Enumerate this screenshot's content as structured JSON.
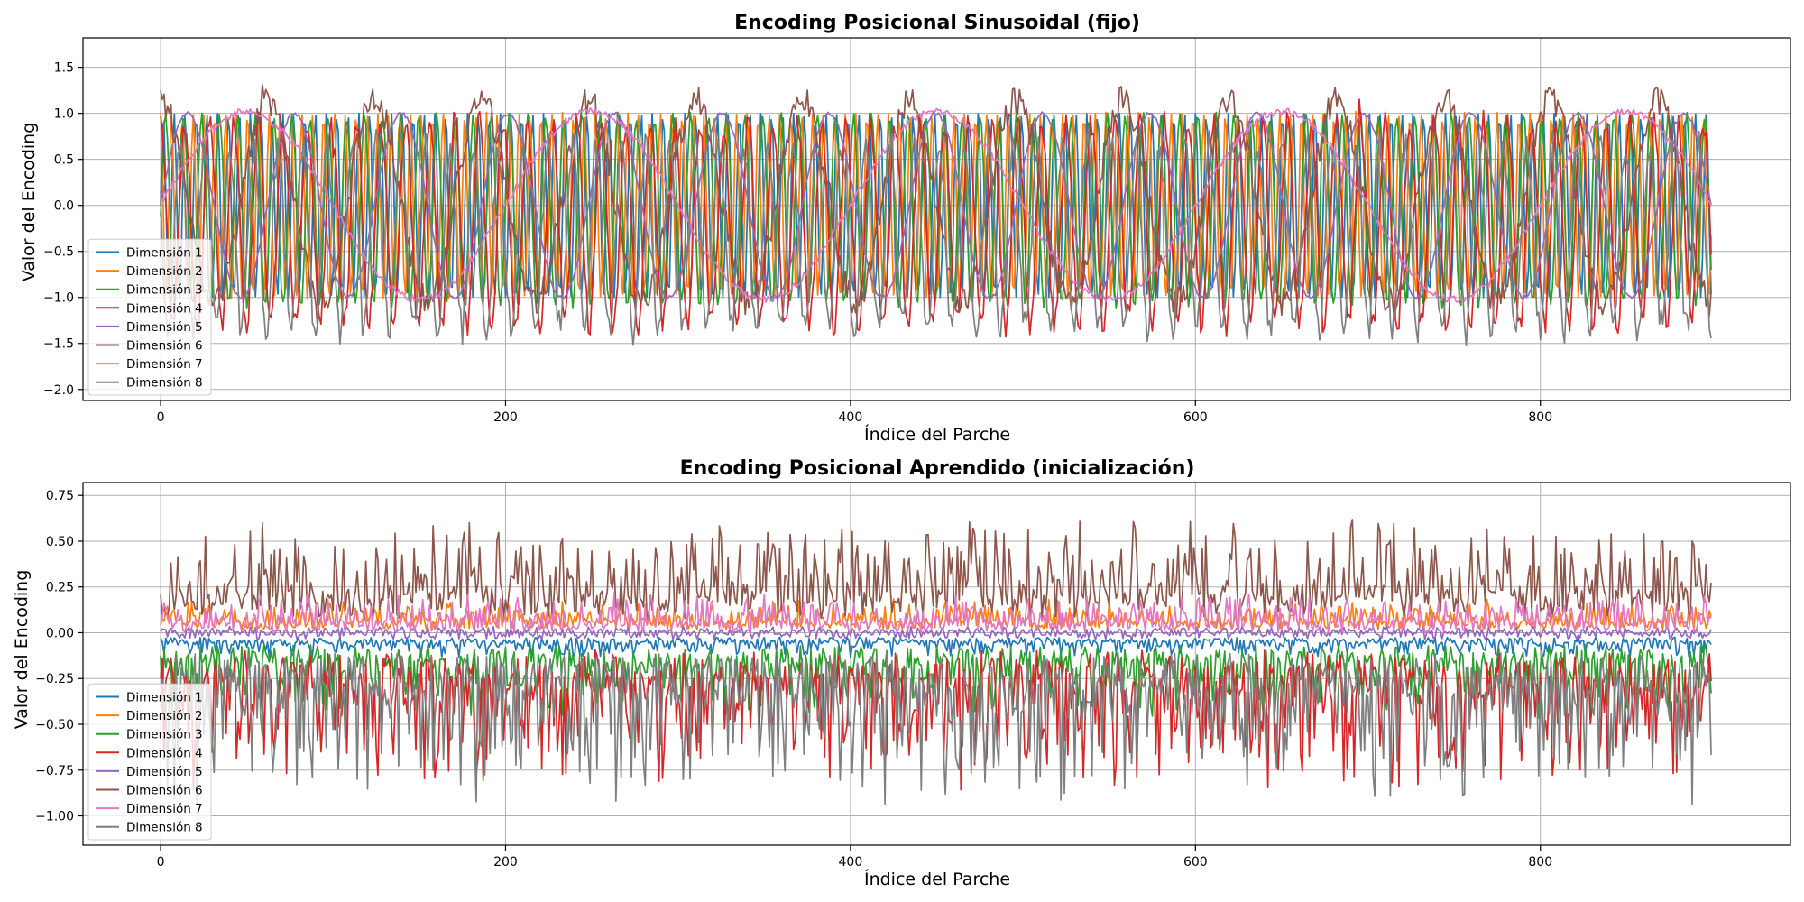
{
  "chart_data": [
    {
      "type": "line",
      "title": "Encoding Posicional Sinusoidal (fijo)",
      "xlabel": "Índice del Parche",
      "ylabel": "Valor del Encoding",
      "xlim": [
        -45,
        945
      ],
      "ylim": [
        -2.12,
        1.82
      ],
      "xticks": [
        0,
        200,
        400,
        600,
        800
      ],
      "yticks": [
        -2.0,
        -1.5,
        -1.0,
        -0.5,
        0.0,
        0.5,
        1.0,
        1.5
      ],
      "ytick_labels": [
        "−2.0",
        "−1.5",
        "−1.0",
        "−0.5",
        "0.0",
        "0.5",
        "1.0",
        "1.5"
      ],
      "xtick_labels": [
        "0",
        "200",
        "400",
        "600",
        "800"
      ],
      "grid": true,
      "legend_position": "lower-left",
      "n_points": 900,
      "series": [
        {
          "name": "Dimensión 1",
          "color": "#1f77b4",
          "kind": "sin",
          "period": 6.3,
          "amplitude": 1.0,
          "phase": 0.0,
          "noise": 0.0,
          "offset": 0.0
        },
        {
          "name": "Dimensión 2",
          "color": "#ff7f0e",
          "kind": "cos",
          "period": 6.3,
          "amplitude": 1.0,
          "phase": 0.0,
          "noise": 0.02,
          "offset": 0.0
        },
        {
          "name": "Dimensión 3",
          "color": "#2ca02c",
          "kind": "sin",
          "period": 10.5,
          "amplitude": 1.02,
          "phase": -0.1,
          "noise": 0.06,
          "offset": -0.05
        },
        {
          "name": "Dimensión 4",
          "color": "#d62728",
          "kind": "cos",
          "period": 14.2,
          "amplitude": 1.1,
          "phase": 0.0,
          "noise": 0.14,
          "offset": -0.2
        },
        {
          "name": "Dimensión 5",
          "color": "#9467bd",
          "kind": "sin",
          "period": 62.0,
          "amplitude": 1.0,
          "phase": 0.0,
          "noise": 0.02,
          "offset": 0.0
        },
        {
          "name": "Dimensión 6",
          "color": "#8c564b",
          "kind": "cos",
          "period": 62.0,
          "amplitude": 1.1,
          "phase": 0.0,
          "noise": 0.16,
          "offset": 0.05
        },
        {
          "name": "Dimensión 7",
          "color": "#e377c2",
          "kind": "sin",
          "period": 200.0,
          "amplitude": 1.02,
          "phase": 0.0,
          "noise": 0.04,
          "offset": 0.0
        },
        {
          "name": "Dimensión 8",
          "color": "#7f7f7f",
          "kind": "cos",
          "period": 14.2,
          "amplitude": 1.0,
          "phase": 1.2,
          "noise": 0.18,
          "offset": -0.35
        }
      ]
    },
    {
      "type": "line",
      "title": "Encoding Posicional Aprendido (inicialización)",
      "xlabel": "Índice del Parche",
      "ylabel": "Valor del Encoding",
      "xlim": [
        -45,
        945
      ],
      "ylim": [
        -1.16,
        0.82
      ],
      "xticks": [
        0,
        200,
        400,
        600,
        800
      ],
      "yticks": [
        -1.0,
        -0.75,
        -0.5,
        -0.25,
        0.0,
        0.25,
        0.5,
        0.75
      ],
      "ytick_labels": [
        "−1.00",
        "−0.75",
        "−0.50",
        "−0.25",
        "0.00",
        "0.25",
        "0.50",
        "0.75"
      ],
      "xtick_labels": [
        "0",
        "200",
        "400",
        "600",
        "800"
      ],
      "grid": true,
      "legend_position": "lower-left",
      "n_points": 900,
      "series": [
        {
          "name": "Dimensión 1",
          "color": "#1f77b4",
          "base": -0.04,
          "spread": 0.06,
          "sign": -1
        },
        {
          "name": "Dimensión 2",
          "color": "#ff7f0e",
          "base": 0.04,
          "spread": 0.09,
          "sign": 1
        },
        {
          "name": "Dimensión 3",
          "color": "#2ca02c",
          "base": -0.12,
          "spread": 0.22,
          "sign": -1
        },
        {
          "name": "Dimensión 4",
          "color": "#d62728",
          "base": -0.2,
          "spread": 0.42,
          "sign": -1
        },
        {
          "name": "Dimensión 5",
          "color": "#9467bd",
          "base": 0.0,
          "spread": 0.05,
          "sign": 0
        },
        {
          "name": "Dimensión 6",
          "color": "#8c564b",
          "base": 0.15,
          "spread": 0.3,
          "sign": 1
        },
        {
          "name": "Dimensión 7",
          "color": "#e377c2",
          "base": 0.03,
          "spread": 0.12,
          "sign": 1
        },
        {
          "name": "Dimensión 8",
          "color": "#7f7f7f",
          "base": -0.22,
          "spread": 0.45,
          "sign": -1
        }
      ]
    }
  ]
}
